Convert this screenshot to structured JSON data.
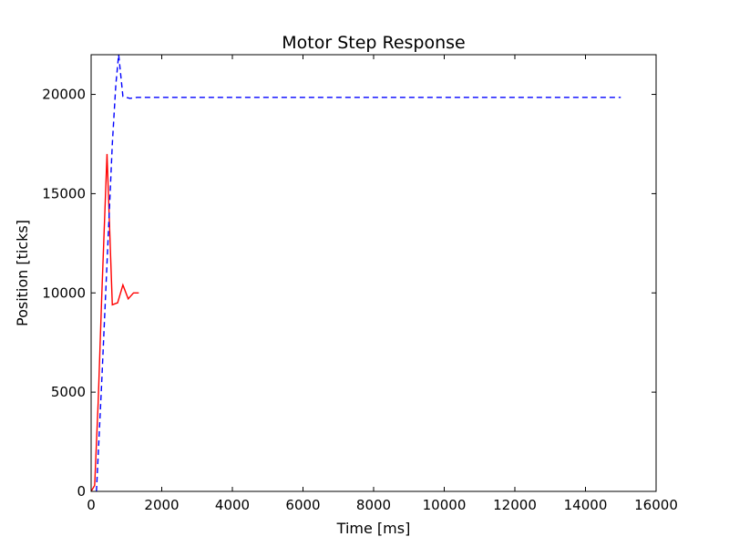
{
  "chart_data": {
    "type": "line",
    "title": "Motor Step Response",
    "xlabel": "Time [ms]",
    "ylabel": "Position [ticks]",
    "xlim": [
      0,
      16000
    ],
    "ylim": [
      0,
      22000
    ],
    "xticks": [
      0,
      2000,
      4000,
      6000,
      8000,
      10000,
      12000,
      14000,
      16000
    ],
    "yticks": [
      0,
      5000,
      10000,
      15000,
      20000
    ],
    "grid": false,
    "legend": "none",
    "series": [
      {
        "color": "#ff0000",
        "style": "solid",
        "x": [
          0,
          100,
          200,
          300,
          450,
          600,
          750,
          900,
          1050,
          1200,
          1350
        ],
        "y": [
          0,
          300,
          4500,
          9800,
          17000,
          9400,
          9500,
          10400,
          9700,
          10000,
          10000
        ]
      },
      {
        "color": "#0000ff",
        "style": "dashed",
        "x": [
          150,
          300,
          450,
          600,
          700,
          780,
          900,
          1100,
          1300,
          15000
        ],
        "y": [
          0,
          5500,
          11500,
          17500,
          20500,
          22000,
          19900,
          19800,
          19850,
          19850
        ]
      }
    ]
  }
}
